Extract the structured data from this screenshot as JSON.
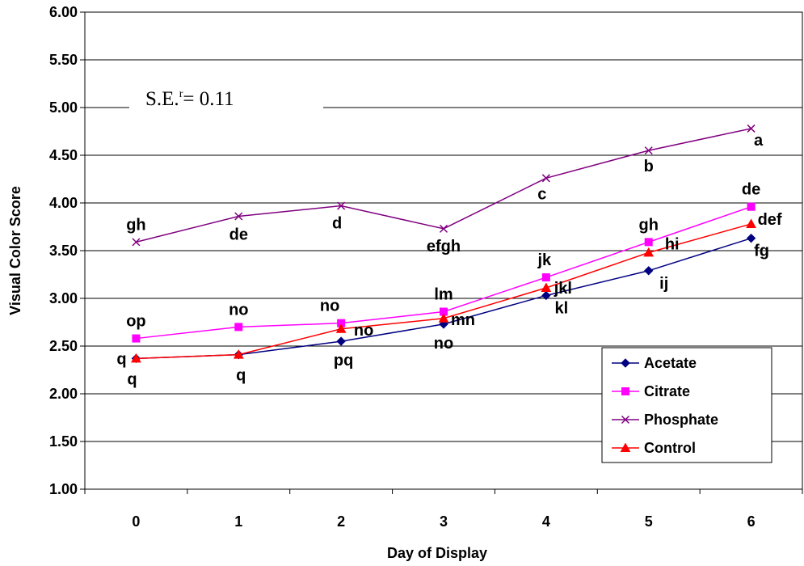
{
  "chart_data": {
    "type": "line",
    "title": "",
    "xlabel": "Day of Display",
    "ylabel": "Visual Color Score",
    "categories": [
      "0",
      "1",
      "2",
      "3",
      "4",
      "5",
      "6"
    ],
    "ylim": [
      1.0,
      6.0
    ],
    "ytick_labels": [
      "1.00",
      "1.50",
      "2.00",
      "2.50",
      "3.00",
      "3.50",
      "4.00",
      "4.50",
      "5.00",
      "5.50",
      "6.00"
    ],
    "grid": "horizontal",
    "legend_position": "bottom-right",
    "annotation": {
      "prefix": "S.E.",
      "superscript": "r",
      "suffix": "= 0.11"
    },
    "series": [
      {
        "name": "Acetate",
        "color": "#000080",
        "marker": "diamond",
        "values": [
          2.37,
          2.41,
          2.55,
          2.73,
          3.03,
          3.29,
          3.63
        ],
        "letters": [
          "q",
          "q",
          "pq",
          "no",
          "kl",
          "ij",
          "fg"
        ]
      },
      {
        "name": "Citrate",
        "color": "#ff00ff",
        "marker": "square",
        "values": [
          2.58,
          2.7,
          2.74,
          2.86,
          3.22,
          3.59,
          3.96
        ],
        "letters": [
          "op",
          "no",
          "no",
          "lm",
          "jk",
          "gh",
          "de"
        ]
      },
      {
        "name": "Phosphate",
        "color": "#800080",
        "marker": "x",
        "values": [
          3.59,
          3.86,
          3.97,
          3.73,
          4.26,
          4.55,
          4.78
        ],
        "letters": [
          "gh",
          "de",
          "d",
          "efgh",
          "c",
          "b",
          "a"
        ]
      },
      {
        "name": "Control",
        "color": "#ff0000",
        "marker": "triangle",
        "values": [
          2.37,
          2.41,
          2.68,
          2.79,
          3.11,
          3.48,
          3.78
        ],
        "letters": [
          "q",
          "q",
          "no",
          "mn",
          "jkl",
          "hi",
          "def"
        ]
      }
    ]
  }
}
